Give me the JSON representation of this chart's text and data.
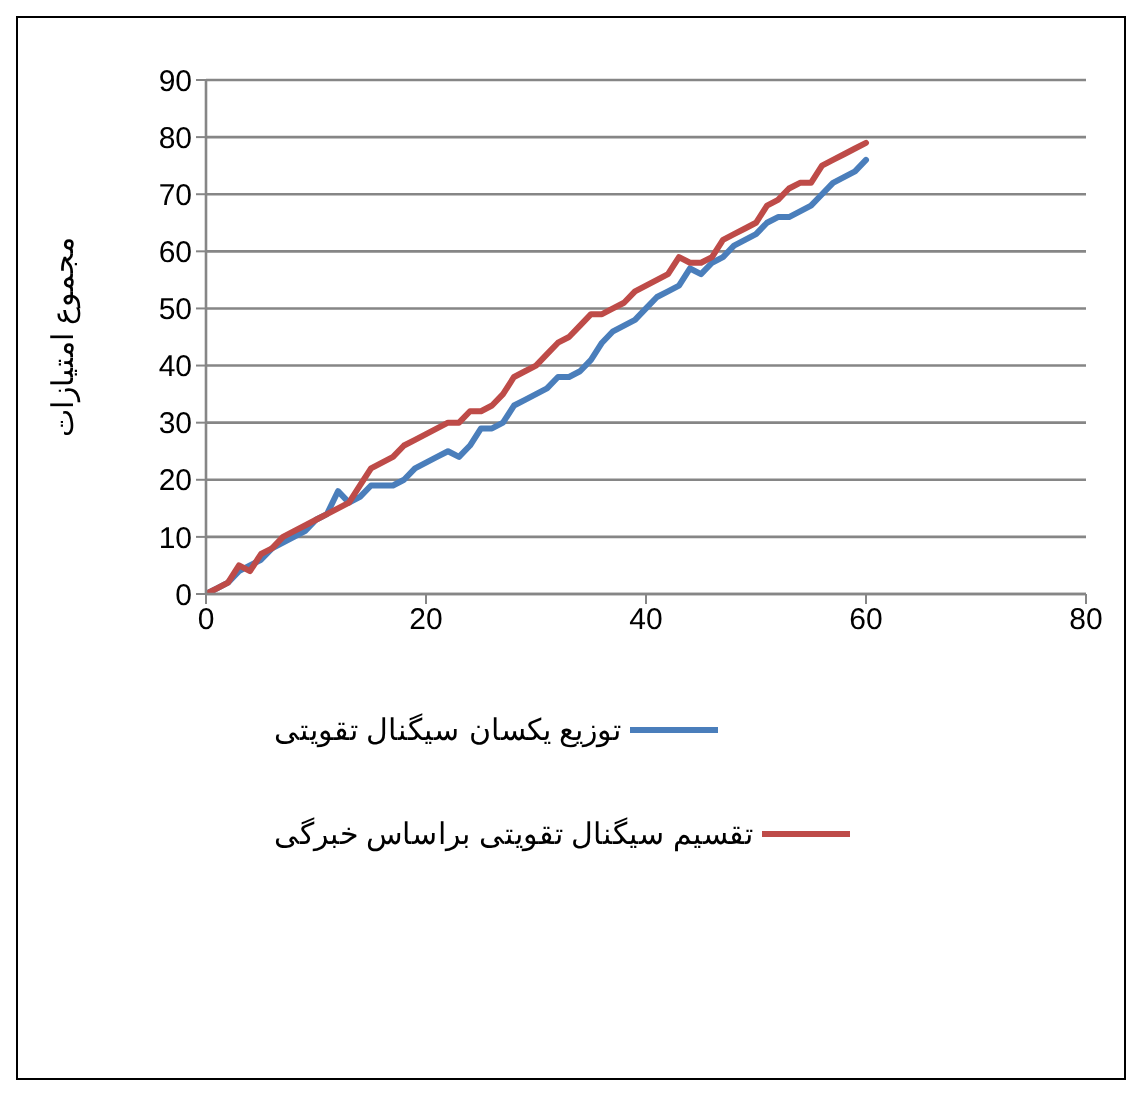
{
  "chart_data": {
    "type": "line",
    "ylabel": "مجموع امتیازات",
    "x": [
      0,
      1,
      2,
      3,
      4,
      5,
      6,
      7,
      8,
      9,
      10,
      11,
      12,
      13,
      14,
      15,
      16,
      17,
      18,
      19,
      20,
      21,
      22,
      23,
      24,
      25,
      26,
      27,
      28,
      29,
      30,
      31,
      32,
      33,
      34,
      35,
      36,
      37,
      38,
      39,
      40,
      41,
      42,
      43,
      44,
      45,
      46,
      47,
      48,
      49,
      50,
      51,
      52,
      53,
      54,
      55,
      56,
      57,
      58,
      59,
      60
    ],
    "series": [
      {
        "name": "توزیع یکسان سیگنال تقویتی",
        "color": "#4a7ebb",
        "values": [
          0,
          1,
          2,
          4,
          5,
          6,
          8,
          9,
          10,
          11,
          13,
          14,
          18,
          16,
          17,
          19,
          19,
          19,
          20,
          22,
          23,
          24,
          25,
          24,
          26,
          29,
          29,
          30,
          33,
          34,
          35,
          36,
          38,
          38,
          39,
          41,
          44,
          46,
          47,
          48,
          50,
          52,
          53,
          54,
          57,
          56,
          58,
          59,
          61,
          62,
          63,
          65,
          66,
          66,
          67,
          68,
          70,
          72,
          73,
          74,
          76
        ]
      },
      {
        "name": "تقسیم سیگنال تقویتی براساس خبرگی",
        "color": "#be4b48",
        "values": [
          0,
          1,
          2,
          5,
          4,
          7,
          8,
          10,
          11,
          12,
          13,
          14,
          15,
          16,
          19,
          22,
          23,
          24,
          26,
          27,
          28,
          29,
          30,
          30,
          32,
          32,
          33,
          35,
          38,
          39,
          40,
          42,
          44,
          45,
          47,
          49,
          49,
          50,
          51,
          53,
          54,
          55,
          56,
          59,
          58,
          58,
          59,
          62,
          63,
          64,
          65,
          68,
          69,
          71,
          72,
          72,
          75,
          76,
          77,
          78,
          79
        ]
      }
    ],
    "xlim": [
      0,
      80
    ],
    "xticks": [
      0,
      20,
      40,
      60,
      80
    ],
    "ylim": [
      0,
      90
    ],
    "yticks": [
      0,
      10,
      20,
      30,
      40,
      50,
      60,
      70,
      80,
      90
    ],
    "grid": "y",
    "legend": "bottom",
    "marker": "none",
    "line_style": "solid"
  }
}
